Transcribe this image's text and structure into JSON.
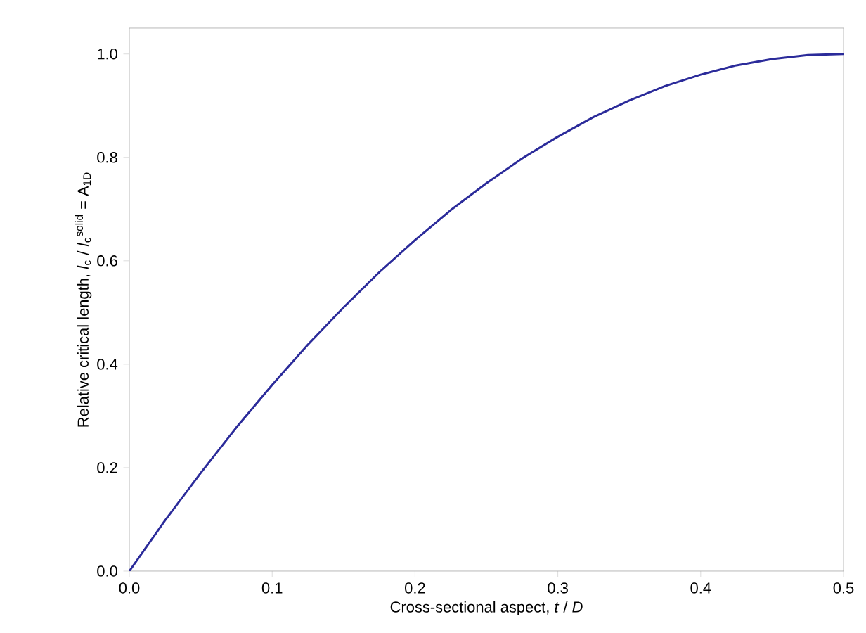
{
  "chart_data": {
    "type": "line",
    "xlabel": "Cross-sectional aspect, *t* / *D*",
    "ylabel": "Relative critical length, *l*$_{c}$ / *l*$_{c}$$^{solid}$ = A$_{1D}$",
    "x": [
      0,
      0.025,
      0.05,
      0.075,
      0.1,
      0.125,
      0.15,
      0.175,
      0.2,
      0.225,
      0.25,
      0.275,
      0.3,
      0.325,
      0.35,
      0.375,
      0.4,
      0.425,
      0.45,
      0.475,
      0.5
    ],
    "series": [
      {
        "color": "#2b2b9a",
        "values": [
          0,
          0.098,
          0.19,
          0.278,
          0.36,
          0.438,
          0.51,
          0.578,
          0.64,
          0.698,
          0.75,
          0.798,
          0.84,
          0.878,
          0.91,
          0.938,
          0.96,
          0.978,
          0.99,
          0.998,
          1.0
        ]
      }
    ],
    "xlim": [
      0,
      0.5
    ],
    "ylim": [
      0,
      1.05
    ],
    "xticks": [
      {
        "value": 0,
        "label": "0.0"
      },
      0.1,
      0.2,
      0.3,
      0.4,
      0.5
    ],
    "yticks": [
      {
        "value": 0,
        "label": "0.0"
      },
      0.2,
      0.4,
      0.6,
      0.8,
      {
        "value": 1,
        "label": "1.0"
      }
    ],
    "marker": "none",
    "line_style": "solid"
  }
}
